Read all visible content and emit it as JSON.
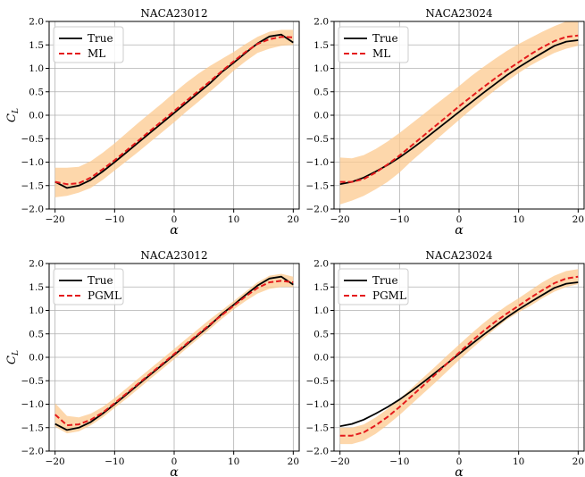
{
  "colors": {
    "true_line": "#000000",
    "model_line": "#e41a1c",
    "band_fill": "#fcc98f",
    "grid": "#b0b0b0"
  },
  "chart_data": [
    {
      "type": "line",
      "title": "NACA23012",
      "xlabel": "α",
      "ylabel": "C_L",
      "xlim": [
        -21,
        21
      ],
      "ylim": [
        -2.0,
        2.0
      ],
      "xticks": [
        "−20",
        "−10",
        "0",
        "10",
        "20"
      ],
      "yticks": [
        "−2.0",
        "−1.5",
        "−1.0",
        "−0.5",
        "0.0",
        "0.5",
        "1.0",
        "1.5",
        "2.0"
      ],
      "grid": true,
      "legend_position": "top-left",
      "x": [
        -20,
        -18,
        -16,
        -14,
        -12,
        -10,
        -8,
        -6,
        -4,
        -2,
        0,
        2,
        4,
        6,
        8,
        10,
        12,
        14,
        16,
        18,
        20
      ],
      "series": [
        {
          "name": "True",
          "style": "solid",
          "values": [
            -1.42,
            -1.55,
            -1.5,
            -1.38,
            -1.2,
            -1.0,
            -0.79,
            -0.58,
            -0.37,
            -0.16,
            0.05,
            0.26,
            0.47,
            0.68,
            0.92,
            1.12,
            1.33,
            1.53,
            1.68,
            1.72,
            1.55
          ]
        },
        {
          "name": "ML",
          "style": "dashed",
          "values": [
            -1.42,
            -1.47,
            -1.45,
            -1.33,
            -1.15,
            -0.96,
            -0.75,
            -0.54,
            -0.33,
            -0.12,
            0.09,
            0.3,
            0.51,
            0.72,
            0.94,
            1.15,
            1.35,
            1.52,
            1.62,
            1.67,
            1.66
          ]
        }
      ],
      "band": {
        "lower": [
          -1.75,
          -1.72,
          -1.65,
          -1.55,
          -1.38,
          -1.18,
          -0.98,
          -0.78,
          -0.57,
          -0.36,
          -0.15,
          0.07,
          0.28,
          0.5,
          0.72,
          0.95,
          1.15,
          1.33,
          1.42,
          1.48,
          1.5
        ],
        "upper": [
          -1.12,
          -1.12,
          -1.1,
          -0.98,
          -0.8,
          -0.6,
          -0.38,
          -0.16,
          0.05,
          0.26,
          0.48,
          0.69,
          0.88,
          1.05,
          1.2,
          1.35,
          1.52,
          1.67,
          1.78,
          1.82,
          1.82
        ]
      }
    },
    {
      "type": "line",
      "title": "NACA23024",
      "xlabel": "α",
      "ylabel": "",
      "xlim": [
        -21,
        21
      ],
      "ylim": [
        -2.0,
        2.0
      ],
      "xticks": [
        "−20",
        "−10",
        "0",
        "10",
        "20"
      ],
      "yticks": [
        "−2.0",
        "−1.5",
        "−1.0",
        "−0.5",
        "0.0",
        "0.5",
        "1.0",
        "1.5",
        "2.0"
      ],
      "grid": true,
      "legend_position": "top-left",
      "x": [
        -20,
        -18,
        -16,
        -14,
        -12,
        -10,
        -8,
        -6,
        -4,
        -2,
        0,
        2,
        4,
        6,
        8,
        10,
        12,
        14,
        16,
        18,
        20
      ],
      "series": [
        {
          "name": "True",
          "style": "solid",
          "values": [
            -1.47,
            -1.42,
            -1.33,
            -1.2,
            -1.06,
            -0.9,
            -0.72,
            -0.53,
            -0.33,
            -0.13,
            0.07,
            0.27,
            0.47,
            0.66,
            0.85,
            1.02,
            1.18,
            1.33,
            1.48,
            1.57,
            1.6
          ]
        },
        {
          "name": "ML",
          "style": "dashed",
          "values": [
            -1.42,
            -1.42,
            -1.36,
            -1.22,
            -1.05,
            -0.86,
            -0.65,
            -0.44,
            -0.23,
            -0.02,
            0.19,
            0.39,
            0.59,
            0.78,
            0.96,
            1.13,
            1.3,
            1.45,
            1.58,
            1.67,
            1.7
          ]
        }
      ],
      "band": {
        "lower": [
          -1.9,
          -1.82,
          -1.72,
          -1.58,
          -1.42,
          -1.22,
          -0.98,
          -0.76,
          -0.54,
          -0.32,
          -0.1,
          0.12,
          0.33,
          0.53,
          0.72,
          0.9,
          1.06,
          1.2,
          1.33,
          1.42,
          1.48
        ],
        "upper": [
          -0.9,
          -0.92,
          -0.85,
          -0.72,
          -0.56,
          -0.38,
          -0.18,
          0.02,
          0.22,
          0.42,
          0.62,
          0.83,
          1.02,
          1.2,
          1.37,
          1.52,
          1.65,
          1.78,
          1.9,
          2.0,
          2.05
        ]
      }
    },
    {
      "type": "line",
      "title": "NACA23012",
      "xlabel": "α",
      "ylabel": "C_L",
      "xlim": [
        -21,
        21
      ],
      "ylim": [
        -2.0,
        2.0
      ],
      "xticks": [
        "−20",
        "−10",
        "0",
        "10",
        "20"
      ],
      "yticks": [
        "−2.0",
        "−1.5",
        "−1.0",
        "−0.5",
        "0.0",
        "0.5",
        "1.0",
        "1.5",
        "2.0"
      ],
      "grid": true,
      "legend_position": "top-left",
      "x": [
        -20,
        -18,
        -16,
        -14,
        -12,
        -10,
        -8,
        -6,
        -4,
        -2,
        0,
        2,
        4,
        6,
        8,
        10,
        12,
        14,
        16,
        18,
        20
      ],
      "series": [
        {
          "name": "True",
          "style": "solid",
          "values": [
            -1.42,
            -1.55,
            -1.5,
            -1.38,
            -1.2,
            -1.0,
            -0.79,
            -0.58,
            -0.37,
            -0.16,
            0.05,
            0.26,
            0.47,
            0.68,
            0.92,
            1.12,
            1.33,
            1.53,
            1.68,
            1.72,
            1.55
          ]
        },
        {
          "name": "PGML",
          "style": "dashed",
          "values": [
            -1.22,
            -1.45,
            -1.43,
            -1.33,
            -1.18,
            -0.98,
            -0.77,
            -0.56,
            -0.35,
            -0.14,
            0.07,
            0.28,
            0.49,
            0.7,
            0.9,
            1.1,
            1.3,
            1.48,
            1.6,
            1.63,
            1.6
          ]
        }
      ],
      "band": {
        "lower": [
          -1.48,
          -1.62,
          -1.58,
          -1.45,
          -1.28,
          -1.08,
          -0.88,
          -0.67,
          -0.46,
          -0.25,
          -0.04,
          0.18,
          0.39,
          0.6,
          0.82,
          1.02,
          1.2,
          1.36,
          1.46,
          1.5,
          1.5
        ],
        "upper": [
          -0.98,
          -1.25,
          -1.28,
          -1.2,
          -1.06,
          -0.87,
          -0.66,
          -0.45,
          -0.24,
          -0.03,
          0.18,
          0.39,
          0.6,
          0.81,
          1.0,
          1.2,
          1.4,
          1.6,
          1.74,
          1.78,
          1.72
        ]
      }
    },
    {
      "type": "line",
      "title": "NACA23024",
      "xlabel": "α",
      "ylabel": "",
      "xlim": [
        -21,
        21
      ],
      "ylim": [
        -2.0,
        2.0
      ],
      "xticks": [
        "−20",
        "−10",
        "0",
        "10",
        "20"
      ],
      "yticks": [
        "−2.0",
        "−1.5",
        "−1.0",
        "−0.5",
        "0.0",
        "0.5",
        "1.0",
        "1.5",
        "2.0"
      ],
      "grid": true,
      "legend_position": "top-left",
      "x": [
        -20,
        -18,
        -16,
        -14,
        -12,
        -10,
        -8,
        -6,
        -4,
        -2,
        0,
        2,
        4,
        6,
        8,
        10,
        12,
        14,
        16,
        18,
        20
      ],
      "series": [
        {
          "name": "True",
          "style": "solid",
          "values": [
            -1.47,
            -1.42,
            -1.33,
            -1.2,
            -1.06,
            -0.9,
            -0.72,
            -0.53,
            -0.33,
            -0.13,
            0.07,
            0.27,
            0.47,
            0.66,
            0.85,
            1.02,
            1.18,
            1.33,
            1.48,
            1.57,
            1.6
          ]
        },
        {
          "name": "PGML",
          "style": "dashed",
          "values": [
            -1.67,
            -1.67,
            -1.6,
            -1.45,
            -1.27,
            -1.06,
            -0.83,
            -0.6,
            -0.37,
            -0.13,
            0.1,
            0.33,
            0.55,
            0.75,
            0.93,
            1.1,
            1.27,
            1.43,
            1.58,
            1.68,
            1.72
          ]
        }
      ],
      "band": {
        "lower": [
          -1.85,
          -1.85,
          -1.78,
          -1.63,
          -1.44,
          -1.23,
          -1.0,
          -0.77,
          -0.54,
          -0.3,
          -0.06,
          0.17,
          0.39,
          0.6,
          0.8,
          0.96,
          1.1,
          1.26,
          1.4,
          1.5,
          1.56
        ],
        "upper": [
          -1.5,
          -1.5,
          -1.43,
          -1.28,
          -1.1,
          -0.89,
          -0.66,
          -0.43,
          -0.2,
          0.04,
          0.27,
          0.5,
          0.72,
          0.92,
          1.1,
          1.26,
          1.43,
          1.6,
          1.74,
          1.84,
          1.88
        ]
      }
    }
  ]
}
